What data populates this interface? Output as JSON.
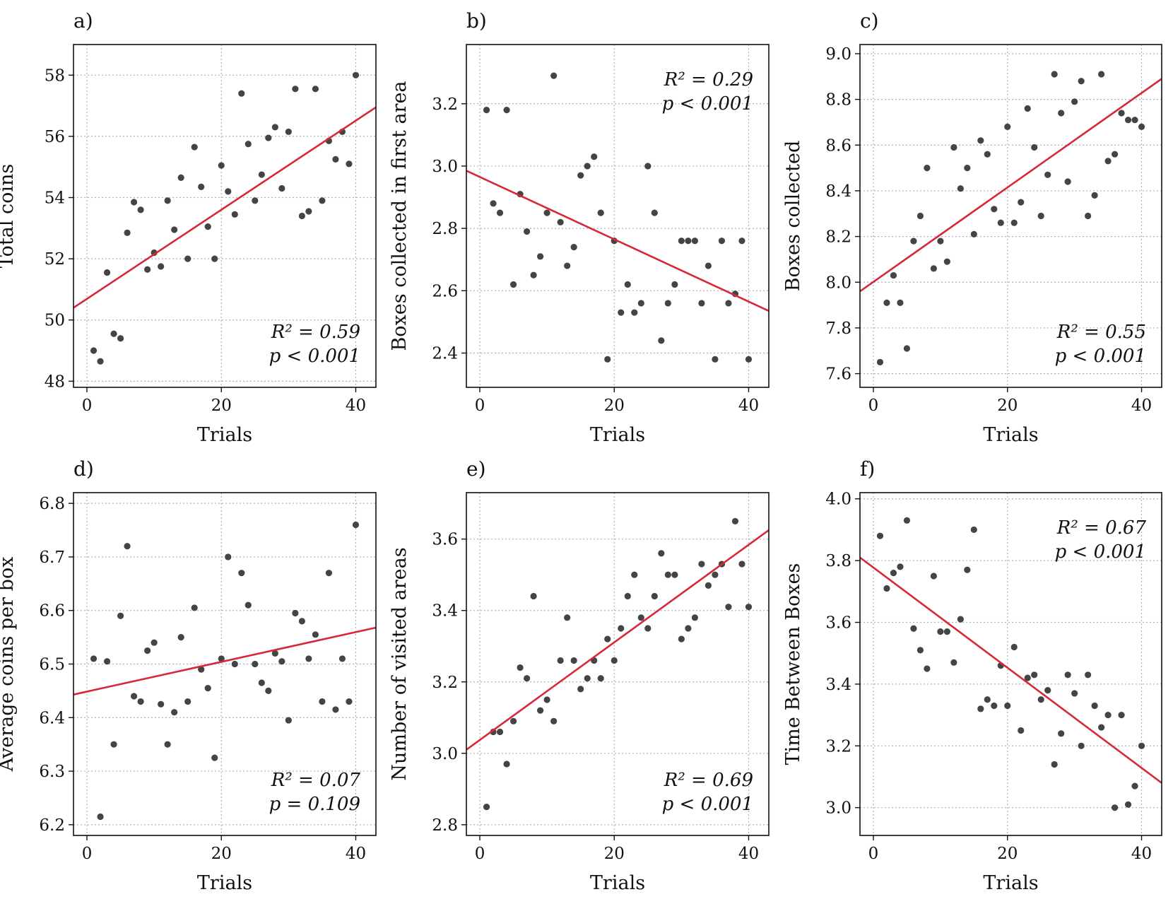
{
  "colors": {
    "points": "#444444",
    "fit_line": "#d62839",
    "grid": "#b0b0b0"
  },
  "chart_data": [
    {
      "type": "scatter",
      "panel_label": "a)",
      "xlabel": "Trials",
      "ylabel": "Total coins",
      "xlim": [
        -2,
        43
      ],
      "ylim": [
        47.8,
        59
      ],
      "xticks": [
        "0",
        "20",
        "40"
      ],
      "yticks": [
        "48",
        "50",
        "52",
        "54",
        "56",
        "58"
      ],
      "grid": true,
      "stats": {
        "r2": "R² = 0.59",
        "p": "p < 0.001",
        "position": "bottom-right"
      },
      "fit_line": {
        "x": [
          -2,
          43
        ],
        "y": [
          50.4,
          56.95
        ]
      },
      "points": {
        "x": [
          1,
          2,
          3,
          4,
          5,
          6,
          7,
          8,
          9,
          10,
          11,
          12,
          13,
          14,
          15,
          16,
          17,
          18,
          19,
          20,
          21,
          22,
          23,
          24,
          25,
          26,
          27,
          28,
          29,
          30,
          31,
          32,
          33,
          34,
          35,
          36,
          37,
          38,
          39,
          40
        ],
        "y": [
          49.0,
          48.65,
          51.55,
          49.55,
          49.4,
          52.85,
          53.85,
          53.6,
          51.65,
          52.2,
          51.75,
          53.9,
          52.95,
          54.65,
          52.0,
          55.65,
          54.35,
          53.05,
          52.0,
          55.05,
          54.2,
          53.45,
          57.4,
          55.75,
          53.9,
          54.75,
          55.95,
          56.3,
          54.3,
          56.15,
          57.55,
          53.4,
          53.55,
          57.55,
          53.9,
          55.85,
          55.25,
          56.15,
          55.1,
          58.0
        ]
      }
    },
    {
      "type": "scatter",
      "panel_label": "b)",
      "xlabel": "Trials",
      "ylabel": "Boxes collected in first area",
      "xlim": [
        -2,
        43
      ],
      "ylim": [
        2.29,
        3.39
      ],
      "xticks": [
        "0",
        "20",
        "40"
      ],
      "yticks": [
        "2.4",
        "2.6",
        "2.8",
        "3.0",
        "3.2"
      ],
      "grid": true,
      "stats": {
        "r2": "R² = 0.29",
        "p": "p < 0.001",
        "position": "top-right"
      },
      "fit_line": {
        "x": [
          -2,
          43
        ],
        "y": [
          2.985,
          2.535
        ]
      },
      "points": {
        "x": [
          1,
          2,
          3,
          4,
          5,
          6,
          7,
          8,
          9,
          10,
          11,
          12,
          13,
          14,
          15,
          16,
          17,
          18,
          19,
          20,
          21,
          22,
          23,
          24,
          25,
          26,
          27,
          28,
          29,
          30,
          31,
          32,
          33,
          34,
          35,
          36,
          37,
          38,
          39,
          40
        ],
        "y": [
          3.18,
          2.88,
          2.85,
          3.18,
          2.62,
          2.91,
          2.79,
          2.65,
          2.71,
          2.85,
          3.29,
          2.82,
          2.68,
          2.74,
          2.97,
          3.0,
          3.03,
          2.85,
          2.38,
          2.76,
          2.53,
          2.62,
          2.53,
          2.56,
          3.0,
          2.85,
          2.44,
          2.56,
          2.62,
          2.76,
          2.76,
          2.76,
          2.56,
          2.68,
          2.38,
          2.76,
          2.56,
          2.59,
          2.76,
          2.38
        ]
      }
    },
    {
      "type": "scatter",
      "panel_label": "c)",
      "xlabel": "Trials",
      "ylabel": "Boxes collected",
      "xlim": [
        -2,
        43
      ],
      "ylim": [
        7.54,
        9.04
      ],
      "xticks": [
        "0",
        "20",
        "40"
      ],
      "yticks": [
        "7.6",
        "7.8",
        "8.0",
        "8.2",
        "8.4",
        "8.6",
        "8.8",
        "9.0"
      ],
      "grid": true,
      "stats": {
        "r2": "R² = 0.55",
        "p": "p < 0.001",
        "position": "bottom-right"
      },
      "fit_line": {
        "x": [
          -2,
          43
        ],
        "y": [
          7.96,
          8.89
        ]
      },
      "points": {
        "x": [
          1,
          2,
          3,
          4,
          5,
          6,
          7,
          8,
          9,
          10,
          11,
          12,
          13,
          14,
          15,
          16,
          17,
          18,
          19,
          20,
          21,
          22,
          23,
          24,
          25,
          26,
          27,
          28,
          29,
          30,
          31,
          32,
          33,
          34,
          35,
          36,
          37,
          38,
          39,
          40
        ],
        "y": [
          7.65,
          7.91,
          8.03,
          7.91,
          7.71,
          8.18,
          8.29,
          8.5,
          8.06,
          8.18,
          8.09,
          8.59,
          8.41,
          8.5,
          8.21,
          8.62,
          8.56,
          8.32,
          8.26,
          8.68,
          8.26,
          8.35,
          8.76,
          8.59,
          8.29,
          8.47,
          8.91,
          8.74,
          8.44,
          8.79,
          8.88,
          8.29,
          8.38,
          8.91,
          8.53,
          8.56,
          8.74,
          8.71,
          8.71,
          8.68
        ]
      }
    },
    {
      "type": "scatter",
      "panel_label": "d)",
      "xlabel": "Trials",
      "ylabel": "Average coins per box",
      "xlim": [
        -2,
        43
      ],
      "ylim": [
        6.18,
        6.82
      ],
      "xticks": [
        "0",
        "20",
        "40"
      ],
      "yticks": [
        "6.2",
        "6.3",
        "6.4",
        "6.5",
        "6.6",
        "6.7",
        "6.8"
      ],
      "grid": true,
      "stats": {
        "r2": "R² = 0.07",
        "p": "p = 0.109",
        "position": "bottom-right"
      },
      "fit_line": {
        "x": [
          -2,
          43
        ],
        "y": [
          6.443,
          6.568
        ]
      },
      "points": {
        "x": [
          1,
          2,
          3,
          4,
          5,
          6,
          7,
          8,
          9,
          10,
          11,
          12,
          13,
          14,
          15,
          16,
          17,
          18,
          19,
          20,
          21,
          22,
          23,
          24,
          25,
          26,
          27,
          28,
          29,
          30,
          31,
          32,
          33,
          34,
          35,
          36,
          37,
          38,
          39,
          40
        ],
        "y": [
          6.51,
          6.215,
          6.505,
          6.35,
          6.59,
          6.72,
          6.44,
          6.43,
          6.525,
          6.54,
          6.425,
          6.35,
          6.41,
          6.55,
          6.43,
          6.605,
          6.49,
          6.455,
          6.325,
          6.51,
          6.7,
          6.5,
          6.67,
          6.61,
          6.5,
          6.465,
          6.45,
          6.52,
          6.505,
          6.395,
          6.595,
          6.58,
          6.51,
          6.555,
          6.43,
          6.67,
          6.415,
          6.51,
          6.43,
          6.76
        ]
      }
    },
    {
      "type": "scatter",
      "panel_label": "e)",
      "xlabel": "Trials",
      "ylabel": "Number of visited areas",
      "xlim": [
        -2,
        43
      ],
      "ylim": [
        2.77,
        3.73
      ],
      "xticks": [
        "0",
        "20",
        "40"
      ],
      "yticks": [
        "2.8",
        "3.0",
        "3.2",
        "3.4",
        "3.6"
      ],
      "grid": true,
      "stats": {
        "r2": "R² = 0.69",
        "p": "p < 0.001",
        "position": "bottom-right"
      },
      "fit_line": {
        "x": [
          -2,
          43
        ],
        "y": [
          3.01,
          3.625
        ]
      },
      "points": {
        "x": [
          1,
          2,
          3,
          4,
          5,
          6,
          7,
          8,
          9,
          10,
          11,
          12,
          13,
          14,
          15,
          16,
          17,
          18,
          19,
          20,
          21,
          22,
          23,
          24,
          25,
          26,
          27,
          28,
          29,
          30,
          31,
          32,
          33,
          34,
          35,
          36,
          37,
          38,
          39,
          40
        ],
        "y": [
          2.85,
          3.06,
          3.06,
          2.97,
          3.09,
          3.24,
          3.21,
          3.44,
          3.12,
          3.15,
          3.09,
          3.26,
          3.38,
          3.26,
          3.18,
          3.21,
          3.26,
          3.21,
          3.32,
          3.26,
          3.35,
          3.44,
          3.5,
          3.38,
          3.35,
          3.44,
          3.56,
          3.5,
          3.5,
          3.32,
          3.35,
          3.38,
          3.53,
          3.47,
          3.5,
          3.53,
          3.41,
          3.65,
          3.53,
          3.41
        ]
      }
    },
    {
      "type": "scatter",
      "panel_label": "f)",
      "xlabel": "Trials",
      "ylabel": "Time Between Boxes",
      "xlim": [
        -2,
        43
      ],
      "ylim": [
        2.91,
        4.02
      ],
      "xticks": [
        "0",
        "20",
        "40"
      ],
      "yticks": [
        "3.0",
        "3.2",
        "3.4",
        "3.6",
        "3.8",
        "4.0"
      ],
      "grid": true,
      "stats": {
        "r2": "R² = 0.67",
        "p": "p < 0.001",
        "position": "top-right"
      },
      "fit_line": {
        "x": [
          -2,
          43
        ],
        "y": [
          3.81,
          3.08
        ]
      },
      "points": {
        "x": [
          1,
          2,
          3,
          4,
          5,
          6,
          7,
          8,
          9,
          10,
          11,
          12,
          13,
          14,
          15,
          16,
          17,
          18,
          19,
          20,
          21,
          22,
          23,
          24,
          25,
          26,
          27,
          28,
          29,
          30,
          31,
          32,
          33,
          34,
          35,
          36,
          37,
          38,
          39,
          40
        ],
        "y": [
          3.88,
          3.71,
          3.76,
          3.78,
          3.93,
          3.58,
          3.51,
          3.45,
          3.75,
          3.57,
          3.57,
          3.47,
          3.61,
          3.77,
          3.9,
          3.32,
          3.35,
          3.33,
          3.46,
          3.33,
          3.52,
          3.25,
          3.42,
          3.43,
          3.35,
          3.38,
          3.14,
          3.24,
          3.43,
          3.37,
          3.2,
          3.43,
          3.33,
          3.26,
          3.3,
          3.0,
          3.3,
          3.01,
          3.07,
          3.2
        ]
      }
    }
  ]
}
